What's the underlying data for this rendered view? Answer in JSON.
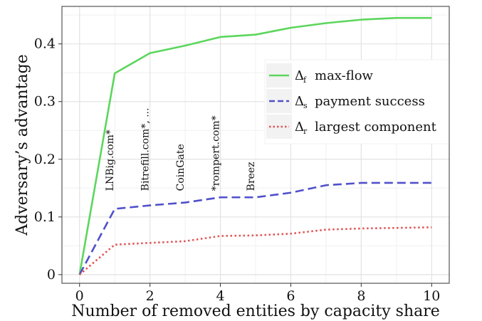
{
  "chart_data": {
    "type": "line",
    "xlabel": "Number of removed entities by capacity share",
    "ylabel": "Adversary’s advantage",
    "xlim": [
      -0.5,
      10.5
    ],
    "ylim": [
      -0.015,
      0.465
    ],
    "xticks": [
      0,
      2,
      4,
      6,
      8,
      10
    ],
    "xtick_labels": [
      "0",
      "2",
      "4",
      "6",
      "8",
      "10"
    ],
    "yticks": [
      0,
      0.1,
      0.2,
      0.3,
      0.4
    ],
    "ytick_labels": [
      "0",
      "0.1",
      "0.2",
      "0.3",
      "0.4"
    ],
    "grid": true,
    "legend_position": "right",
    "x": [
      0,
      1,
      2,
      3,
      4,
      5,
      6,
      7,
      8,
      9,
      10
    ],
    "series": [
      {
        "symbol": "Δ",
        "subscript": "f",
        "name": "max-flow",
        "color": "#5cd65c",
        "dash": "solid",
        "values": [
          0,
          0.349,
          0.384,
          0.397,
          0.412,
          0.416,
          0.428,
          0.436,
          0.442,
          0.445,
          0.445
        ]
      },
      {
        "symbol": "Δ",
        "subscript": "s",
        "name": "payment success",
        "color": "#5050cc",
        "dash": "dashed",
        "values": [
          0,
          0.114,
          0.12,
          0.125,
          0.134,
          0.134,
          0.142,
          0.155,
          0.159,
          0.159,
          0.159
        ]
      },
      {
        "symbol": "Δ",
        "subscript": "r",
        "name": "largest component",
        "color": "#e05555",
        "dash": "dotted",
        "values": [
          0,
          0.052,
          0.055,
          0.058,
          0.067,
          0.068,
          0.071,
          0.078,
          0.08,
          0.081,
          0.082
        ]
      }
    ],
    "annotations": [
      {
        "x": 1,
        "text": "LNBig.com*"
      },
      {
        "x": 2,
        "text": "Bitrefill.com*, ..."
      },
      {
        "x": 3,
        "text": "CoinGate"
      },
      {
        "x": 4,
        "text": "*rompert.com*"
      },
      {
        "x": 5,
        "text": "Breez"
      }
    ]
  }
}
